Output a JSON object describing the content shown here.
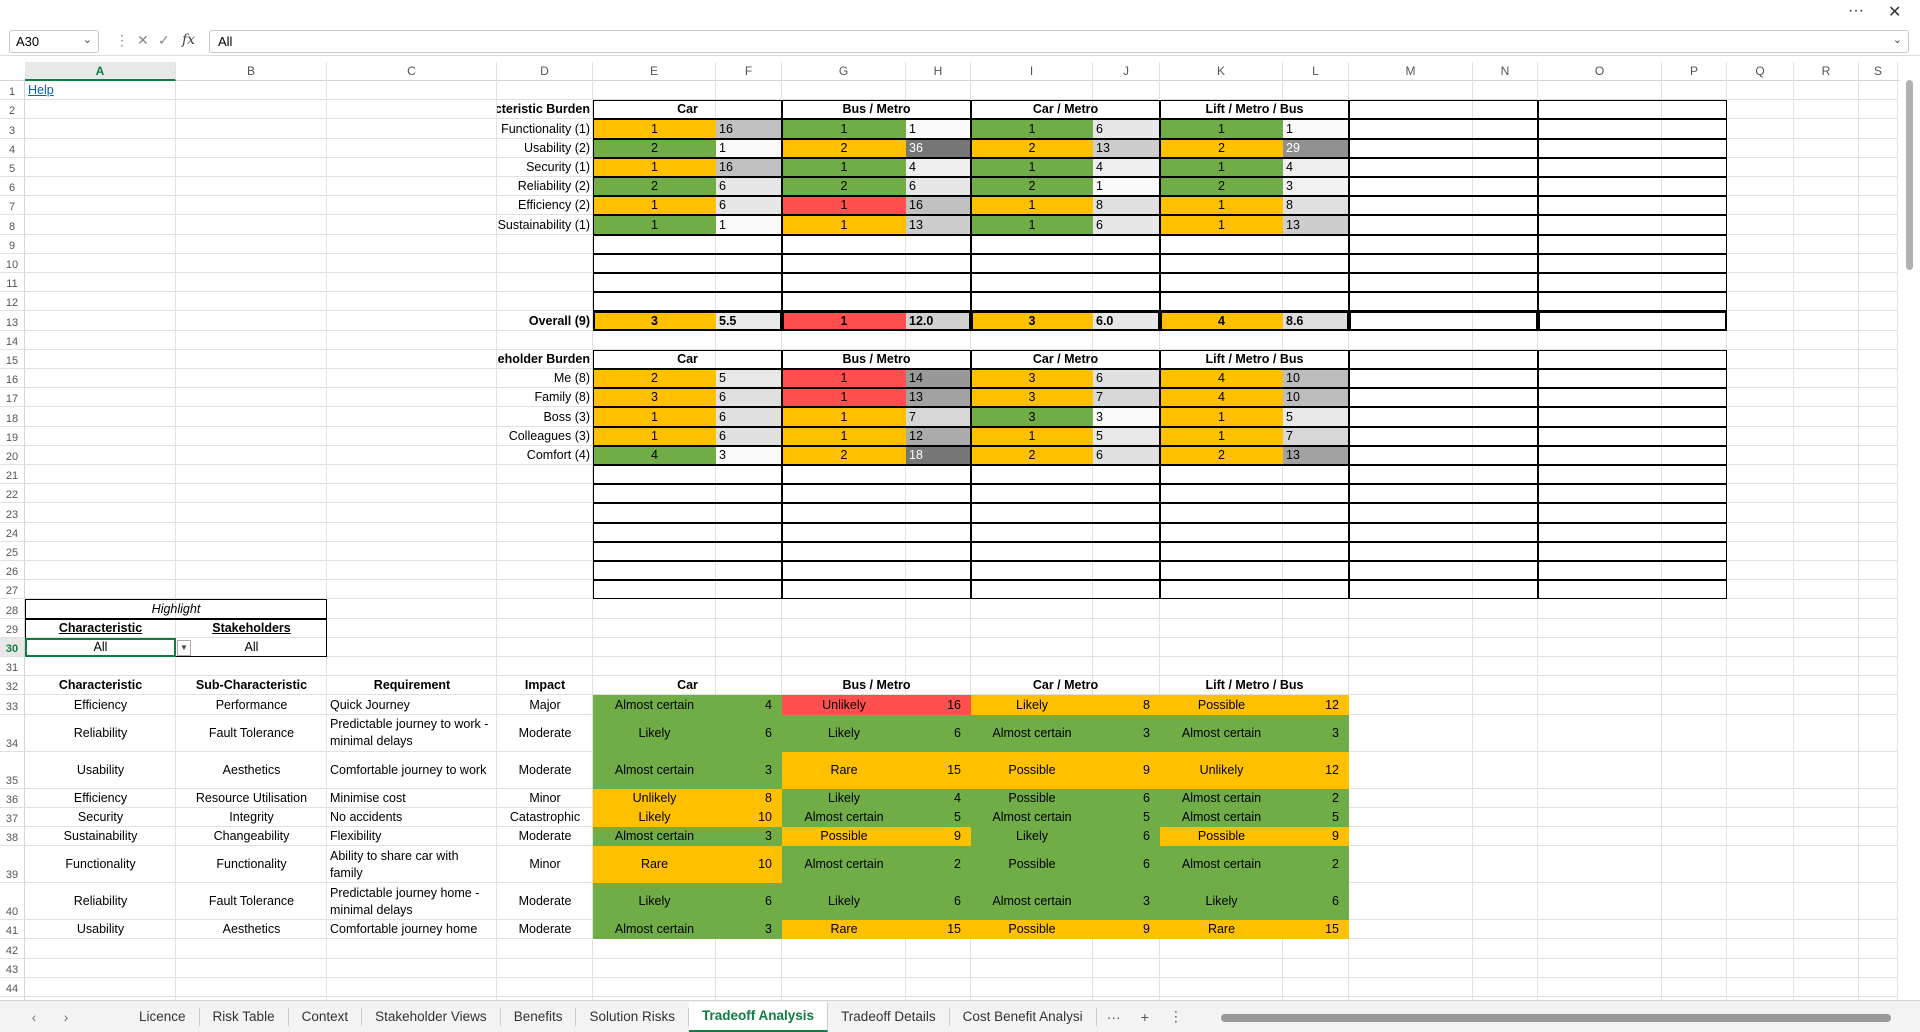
{
  "window": {
    "more_label": "···",
    "close_label": "✕"
  },
  "formula_bar": {
    "name_box": "A30",
    "fx": "fx",
    "formula": "All"
  },
  "columns": [
    "A",
    "B",
    "C",
    "D",
    "E",
    "F",
    "G",
    "H",
    "I",
    "J",
    "K",
    "L",
    "M",
    "N",
    "O",
    "P",
    "Q",
    "R",
    "S"
  ],
  "help_link": "Help",
  "alternatives": [
    "Car",
    "Bus / Metro",
    "Car / Metro",
    "Lift / Metro / Bus"
  ],
  "colors": {
    "green": "#70AD47",
    "amber": "#FFC000",
    "red": "#FF4F4F",
    "selection": "#107C41"
  },
  "characteristic_burden": {
    "title": "Characteristic Burden",
    "rows": [
      {
        "label": "Functionality (1)",
        "cells": [
          {
            "rank": "1",
            "color": "amber",
            "score": "16"
          },
          {
            "rank": "1",
            "color": "green",
            "score": "1"
          },
          {
            "rank": "1",
            "color": "green",
            "score": "6"
          },
          {
            "rank": "1",
            "color": "green",
            "score": "1"
          }
        ]
      },
      {
        "label": "Usability (2)",
        "cells": [
          {
            "rank": "2",
            "color": "green",
            "score": "1"
          },
          {
            "rank": "2",
            "color": "amber",
            "score": "36"
          },
          {
            "rank": "2",
            "color": "amber",
            "score": "13"
          },
          {
            "rank": "2",
            "color": "amber",
            "score": "29"
          }
        ]
      },
      {
        "label": "Security (1)",
        "cells": [
          {
            "rank": "1",
            "color": "amber",
            "score": "16"
          },
          {
            "rank": "1",
            "color": "green",
            "score": "4"
          },
          {
            "rank": "1",
            "color": "green",
            "score": "4"
          },
          {
            "rank": "1",
            "color": "green",
            "score": "4"
          }
        ]
      },
      {
        "label": "Reliability (2)",
        "cells": [
          {
            "rank": "2",
            "color": "green",
            "score": "6"
          },
          {
            "rank": "2",
            "color": "green",
            "score": "6"
          },
          {
            "rank": "2",
            "color": "green",
            "score": "1"
          },
          {
            "rank": "2",
            "color": "green",
            "score": "3"
          }
        ]
      },
      {
        "label": "Efficiency (2)",
        "cells": [
          {
            "rank": "1",
            "color": "amber",
            "score": "6"
          },
          {
            "rank": "1",
            "color": "red",
            "score": "16"
          },
          {
            "rank": "1",
            "color": "amber",
            "score": "8"
          },
          {
            "rank": "1",
            "color": "amber",
            "score": "8"
          }
        ]
      },
      {
        "label": "Sustainability (1)",
        "cells": [
          {
            "rank": "1",
            "color": "green",
            "score": "1"
          },
          {
            "rank": "1",
            "color": "amber",
            "score": "13"
          },
          {
            "rank": "1",
            "color": "green",
            "score": "6"
          },
          {
            "rank": "1",
            "color": "amber",
            "score": "13"
          }
        ]
      }
    ],
    "overall": {
      "label": "Overall (9)",
      "cells": [
        {
          "rank": "3",
          "color": "amber",
          "score": "5.5"
        },
        {
          "rank": "1",
          "color": "red",
          "score": "12.0"
        },
        {
          "rank": "3",
          "color": "amber",
          "score": "6.0"
        },
        {
          "rank": "4",
          "color": "amber",
          "score": "8.6"
        }
      ]
    }
  },
  "stakeholder_burden": {
    "title": "Stakeholder Burden",
    "rows": [
      {
        "label": "Me (8)",
        "cells": [
          {
            "rank": "2",
            "color": "amber",
            "score": "5"
          },
          {
            "rank": "1",
            "color": "red",
            "score": "14"
          },
          {
            "rank": "3",
            "color": "amber",
            "score": "6"
          },
          {
            "rank": "4",
            "color": "amber",
            "score": "10"
          }
        ]
      },
      {
        "label": "Family (8)",
        "cells": [
          {
            "rank": "3",
            "color": "amber",
            "score": "6"
          },
          {
            "rank": "1",
            "color": "red",
            "score": "13"
          },
          {
            "rank": "3",
            "color": "amber",
            "score": "7"
          },
          {
            "rank": "4",
            "color": "amber",
            "score": "10"
          }
        ]
      },
      {
        "label": "Boss (3)",
        "cells": [
          {
            "rank": "1",
            "color": "amber",
            "score": "6"
          },
          {
            "rank": "1",
            "color": "amber",
            "score": "7"
          },
          {
            "rank": "3",
            "color": "green",
            "score": "3"
          },
          {
            "rank": "1",
            "color": "amber",
            "score": "5"
          }
        ]
      },
      {
        "label": "Colleagues (3)",
        "cells": [
          {
            "rank": "1",
            "color": "amber",
            "score": "6"
          },
          {
            "rank": "1",
            "color": "amber",
            "score": "12"
          },
          {
            "rank": "1",
            "color": "amber",
            "score": "5"
          },
          {
            "rank": "1",
            "color": "amber",
            "score": "7"
          }
        ]
      },
      {
        "label": "Comfort (4)",
        "cells": [
          {
            "rank": "4",
            "color": "green",
            "score": "3"
          },
          {
            "rank": "2",
            "color": "amber",
            "score": "18"
          },
          {
            "rank": "2",
            "color": "amber",
            "score": "6"
          },
          {
            "rank": "2",
            "color": "amber",
            "score": "13"
          }
        ]
      }
    ]
  },
  "highlight": {
    "title": "Highlight",
    "characteristic_label": "Characteristic",
    "stakeholders_label": "Stakeholders",
    "characteristic_value": "All",
    "stakeholders_value": "All"
  },
  "risk_table": {
    "headers": [
      "Characteristic",
      "Sub-Characteristic",
      "Requirement",
      "Impact"
    ],
    "rows": [
      {
        "characteristic": "Efficiency",
        "sub": "Performance",
        "requirement": "Quick Journey",
        "impact": "Major",
        "cells": [
          {
            "likelihood": "Almost certain",
            "score": "4",
            "color": "green"
          },
          {
            "likelihood": "Unlikely",
            "score": "16",
            "color": "red"
          },
          {
            "likelihood": "Likely",
            "score": "8",
            "color": "amber"
          },
          {
            "likelihood": "Possible",
            "score": "12",
            "color": "amber"
          }
        ]
      },
      {
        "characteristic": "Reliability",
        "sub": "Fault Tolerance",
        "requirement": "Predictable journey to work - minimal delays",
        "impact": "Moderate",
        "cells": [
          {
            "likelihood": "Likely",
            "score": "6",
            "color": "green"
          },
          {
            "likelihood": "Likely",
            "score": "6",
            "color": "green"
          },
          {
            "likelihood": "Almost certain",
            "score": "3",
            "color": "green"
          },
          {
            "likelihood": "Almost certain",
            "score": "3",
            "color": "green"
          }
        ]
      },
      {
        "characteristic": "Usability",
        "sub": "Aesthetics",
        "requirement": "Comfortable journey to work",
        "impact": "Moderate",
        "cells": [
          {
            "likelihood": "Almost certain",
            "score": "3",
            "color": "green"
          },
          {
            "likelihood": "Rare",
            "score": "15",
            "color": "amber"
          },
          {
            "likelihood": "Possible",
            "score": "9",
            "color": "amber"
          },
          {
            "likelihood": "Unlikely",
            "score": "12",
            "color": "amber"
          }
        ]
      },
      {
        "characteristic": "Efficiency",
        "sub": "Resource Utilisation",
        "requirement": "Minimise cost",
        "impact": "Minor",
        "cells": [
          {
            "likelihood": "Unlikely",
            "score": "8",
            "color": "amber"
          },
          {
            "likelihood": "Likely",
            "score": "4",
            "color": "green"
          },
          {
            "likelihood": "Possible",
            "score": "6",
            "color": "green"
          },
          {
            "likelihood": "Almost certain",
            "score": "2",
            "color": "green"
          }
        ]
      },
      {
        "characteristic": "Security",
        "sub": "Integrity",
        "requirement": "No accidents",
        "impact": "Catastrophic",
        "cells": [
          {
            "likelihood": "Likely",
            "score": "10",
            "color": "amber"
          },
          {
            "likelihood": "Almost certain",
            "score": "5",
            "color": "green"
          },
          {
            "likelihood": "Almost certain",
            "score": "5",
            "color": "green"
          },
          {
            "likelihood": "Almost certain",
            "score": "5",
            "color": "green"
          }
        ]
      },
      {
        "characteristic": "Sustainability",
        "sub": "Changeability",
        "requirement": "Flexibility",
        "impact": "Moderate",
        "cells": [
          {
            "likelihood": "Almost certain",
            "score": "3",
            "color": "green"
          },
          {
            "likelihood": "Possible",
            "score": "9",
            "color": "amber"
          },
          {
            "likelihood": "Likely",
            "score": "6",
            "color": "green"
          },
          {
            "likelihood": "Possible",
            "score": "9",
            "color": "amber"
          }
        ]
      },
      {
        "characteristic": "Functionality",
        "sub": "Functionality",
        "requirement": "Ability to share car with family",
        "impact": "Minor",
        "cells": [
          {
            "likelihood": "Rare",
            "score": "10",
            "color": "amber"
          },
          {
            "likelihood": "Almost certain",
            "score": "2",
            "color": "green"
          },
          {
            "likelihood": "Possible",
            "score": "6",
            "color": "green"
          },
          {
            "likelihood": "Almost certain",
            "score": "2",
            "color": "green"
          }
        ]
      },
      {
        "characteristic": "Reliability",
        "sub": "Fault Tolerance",
        "requirement": "Predictable journey home - minimal delays",
        "impact": "Moderate",
        "cells": [
          {
            "likelihood": "Likely",
            "score": "6",
            "color": "green"
          },
          {
            "likelihood": "Likely",
            "score": "6",
            "color": "green"
          },
          {
            "likelihood": "Almost certain",
            "score": "3",
            "color": "green"
          },
          {
            "likelihood": "Likely",
            "score": "6",
            "color": "green"
          }
        ]
      },
      {
        "characteristic": "Usability",
        "sub": "Aesthetics",
        "requirement": "Comfortable journey home",
        "impact": "Moderate",
        "cells": [
          {
            "likelihood": "Almost certain",
            "score": "3",
            "color": "green"
          },
          {
            "likelihood": "Rare",
            "score": "15",
            "color": "amber"
          },
          {
            "likelihood": "Possible",
            "score": "9",
            "color": "amber"
          },
          {
            "likelihood": "Rare",
            "score": "15",
            "color": "amber"
          }
        ]
      }
    ]
  },
  "sheet_tabs": [
    "Licence",
    "Risk Table",
    "Context",
    "Stakeholder Views",
    "Benefits",
    "Solution Risks",
    "Tradeoff Analysis",
    "Tradeoff Details",
    "Cost Benefit Analysi"
  ],
  "active_tab": "Tradeoff Analysis",
  "tabs_bar": {
    "prev": "‹",
    "next": "›",
    "more": "···",
    "add": "+",
    "options": "⋮"
  }
}
